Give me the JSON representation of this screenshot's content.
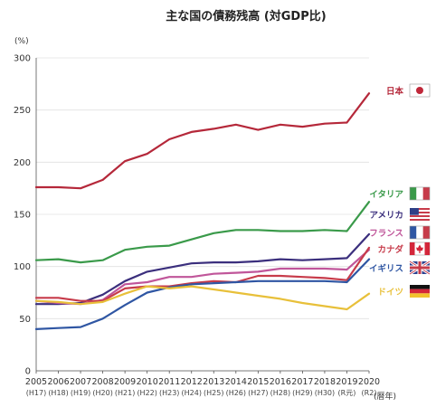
{
  "chart_data": {
    "type": "line",
    "title": "主な国の債務残高 (対GDP比)",
    "ylabel": "(%)",
    "xlabel": "(暦年)",
    "ylim": [
      0,
      300
    ],
    "yticks": [
      0,
      50,
      100,
      150,
      200,
      250,
      300
    ],
    "grid": true,
    "legend_placement": "right",
    "categories": [
      "2005",
      "2006",
      "2007",
      "2008",
      "2009",
      "2010",
      "2011",
      "2012",
      "2013",
      "2014",
      "2015",
      "2016",
      "2017",
      "2018",
      "2019",
      "2020"
    ],
    "era_labels": [
      "(H17)",
      "(H18)",
      "(H19)",
      "(H20)",
      "(H21)",
      "(H22)",
      "(H23)",
      "(H24)",
      "(H25)",
      "(H26)",
      "(H27)",
      "(H28)",
      "(H29)",
      "(H30)",
      "(R元)",
      "(R2)"
    ],
    "series": [
      {
        "name": "日本",
        "color": "#b5283a",
        "flag": "japan-flag-icon",
        "values": [
          176,
          176,
          175,
          183,
          201,
          208,
          222,
          229,
          232,
          236,
          231,
          236,
          234,
          237,
          238,
          266
        ]
      },
      {
        "name": "イタリア",
        "color": "#3a9a4a",
        "flag": "italy-flag-icon",
        "values": [
          106,
          107,
          104,
          106,
          116,
          119,
          120,
          126,
          132,
          135,
          135,
          134,
          134,
          135,
          134,
          162
        ]
      },
      {
        "name": "アメリカ",
        "color": "#3b2f7d",
        "flag": "usa-flag-icon",
        "values": [
          64,
          64,
          65,
          73,
          86,
          95,
          99,
          103,
          104,
          104,
          105,
          107,
          106,
          107,
          108,
          131
        ]
      },
      {
        "name": "フランス",
        "color": "#c0569a",
        "flag": "france-flag-icon",
        "values": [
          67,
          65,
          64,
          68,
          83,
          85,
          90,
          90,
          93,
          94,
          95,
          98,
          98,
          98,
          97,
          116
        ]
      },
      {
        "name": "カナダ",
        "color": "#c73b4a",
        "flag": "canada-flag-icon",
        "values": [
          70,
          70,
          67,
          67,
          79,
          81,
          81,
          84,
          86,
          85,
          91,
          91,
          90,
          89,
          87,
          118
        ]
      },
      {
        "name": "イギリス",
        "color": "#2f56a3",
        "flag": "uk-flag-icon",
        "values": [
          40,
          41,
          42,
          50,
          63,
          75,
          80,
          83,
          84,
          85,
          86,
          86,
          86,
          86,
          85,
          107
        ]
      },
      {
        "name": "ドイツ",
        "color": "#e8c03a",
        "flag": "germany-flag-icon",
        "values": [
          67,
          66,
          64,
          66,
          74,
          81,
          79,
          81,
          78,
          75,
          72,
          69,
          65,
          62,
          59,
          74
        ]
      }
    ]
  }
}
